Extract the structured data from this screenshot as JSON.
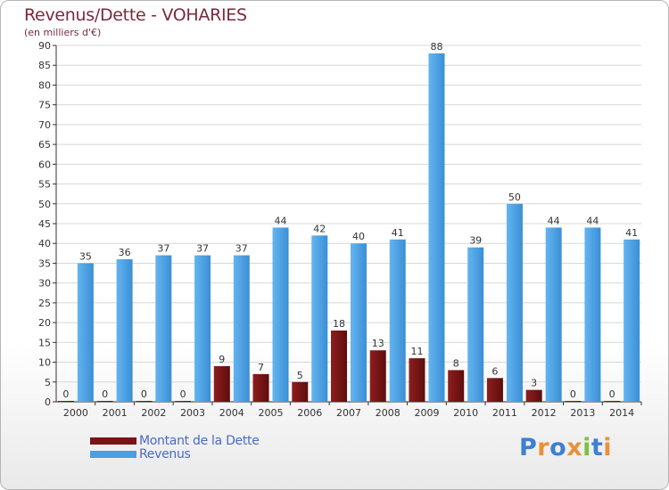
{
  "header": {
    "title": "Revenus/Dette - VOHARIES",
    "subtitle": "(en milliers d'€)"
  },
  "colors": {
    "debt": "#7a1414",
    "revenue": "#4a9fe0",
    "grid": "#d8d8d8",
    "axis": "#333333",
    "label": "#333333"
  },
  "logo": {
    "text": "Proxiti",
    "letters": [
      "P",
      "r",
      "o",
      "x",
      "i",
      "t",
      "i"
    ],
    "letter_colors": [
      "#3f7fd0",
      "#e8913a",
      "#3f7fd0",
      "#e8913a",
      "#7cc242",
      "#3f7fd0",
      "#e8913a"
    ]
  },
  "chart_data": {
    "type": "bar",
    "title": "Revenus/Dette - VOHARIES",
    "subtitle": "(en milliers d'€)",
    "categories": [
      "2000",
      "2001",
      "2002",
      "2003",
      "2004",
      "2005",
      "2006",
      "2007",
      "2008",
      "2009",
      "2010",
      "2011",
      "2012",
      "2013",
      "2014"
    ],
    "series": [
      {
        "name": "Montant de la Dette",
        "values": [
          0,
          0,
          0,
          0,
          9,
          7,
          5,
          18,
          13,
          11,
          8,
          6,
          3,
          0,
          0
        ]
      },
      {
        "name": "Revenus",
        "values": [
          35,
          36,
          37,
          37,
          37,
          44,
          42,
          40,
          41,
          88,
          39,
          50,
          44,
          44,
          41
        ]
      }
    ],
    "ylim": [
      0,
      90
    ],
    "yticks": [
      0,
      5,
      10,
      15,
      20,
      25,
      30,
      35,
      40,
      45,
      50,
      55,
      60,
      65,
      70,
      75,
      80,
      85,
      90
    ],
    "grid": true,
    "legend_position": "bottom-left"
  }
}
